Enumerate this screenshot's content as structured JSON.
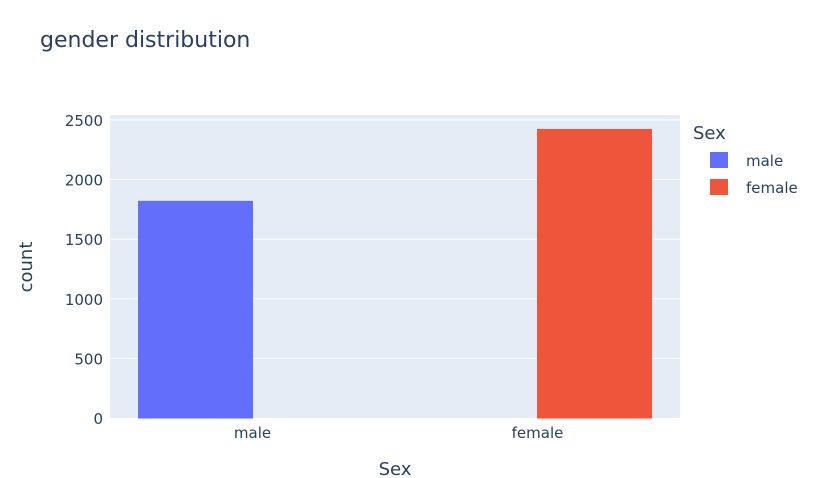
{
  "chart_data": {
    "type": "bar",
    "title": "gender distribution",
    "xlabel": "Sex",
    "ylabel": "count",
    "categories": [
      "male",
      "female"
    ],
    "series": [
      {
        "name": "male",
        "values": [
          1817,
          null
        ],
        "color": "#636efa"
      },
      {
        "name": "female",
        "values": [
          null,
          2420
        ],
        "color": "#ef553b"
      }
    ],
    "ylim": [
      0,
      2541
    ],
    "yticks": [
      0,
      500,
      1000,
      1500,
      2000,
      2500
    ],
    "grid": true,
    "legend": {
      "title": "Sex",
      "placement": "right"
    },
    "plot_bg": "#e5ecf6"
  }
}
